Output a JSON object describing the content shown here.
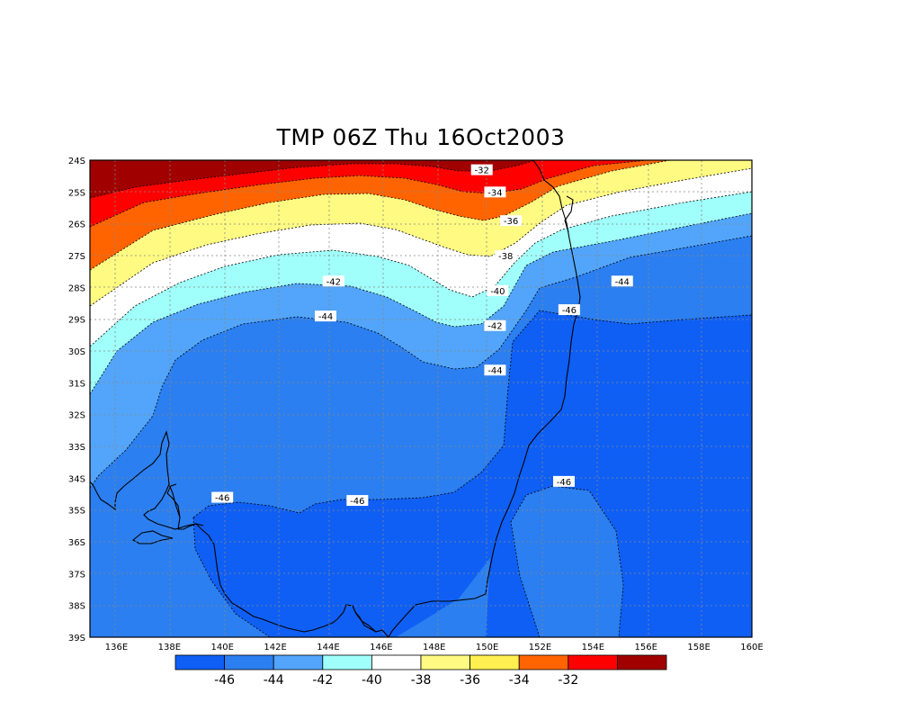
{
  "title": "TMP 06Z Thu 16Oct2003",
  "lat_labels": [
    "24S",
    "25S",
    "26S",
    "27S",
    "28S",
    "29S",
    "30S",
    "31S",
    "32S",
    "33S",
    "34S",
    "35S",
    "36S",
    "37S",
    "38S",
    "39S"
  ],
  "lon_labels": [
    "136E",
    "138E",
    "140E",
    "142E",
    "144E",
    "146E",
    "148E",
    "150E",
    "152E",
    "154E",
    "156E",
    "158E",
    "160E"
  ],
  "contour_labels": [
    {
      "text": "-32",
      "lon": 149.8,
      "lat": -24.3
    },
    {
      "text": "-34",
      "lon": 150.3,
      "lat": -25.0
    },
    {
      "text": "-36",
      "lon": 150.9,
      "lat": -25.9
    },
    {
      "text": "-38",
      "lon": 150.7,
      "lat": -27.0
    },
    {
      "text": "-40",
      "lon": 150.4,
      "lat": -28.1
    },
    {
      "text": "-42",
      "lon": 144.2,
      "lat": -27.8
    },
    {
      "text": "-42",
      "lon": 150.3,
      "lat": -29.2
    },
    {
      "text": "-44",
      "lon": 143.9,
      "lat": -28.9
    },
    {
      "text": "-44",
      "lon": 155.1,
      "lat": -27.8
    },
    {
      "text": "-44",
      "lon": 150.3,
      "lat": -30.6
    },
    {
      "text": "-46",
      "lon": 153.1,
      "lat": -28.7
    },
    {
      "text": "-46",
      "lon": 140.0,
      "lat": -34.6
    },
    {
      "text": "-46",
      "lon": 145.1,
      "lat": -34.7
    },
    {
      "text": "-46",
      "lon": 152.9,
      "lat": -34.1
    }
  ],
  "colorbar": {
    "colors": [
      "#0f5ff5",
      "#2b7ff0",
      "#52a5fa",
      "#a0fffa",
      "#ffffff",
      "#fffa82",
      "#fff050",
      "#ff6400",
      "#ff0000",
      "#a00000"
    ],
    "labels": [
      "-46",
      "-44",
      "-42",
      "-40",
      "-38",
      "-36",
      "-34",
      "-32"
    ]
  }
}
